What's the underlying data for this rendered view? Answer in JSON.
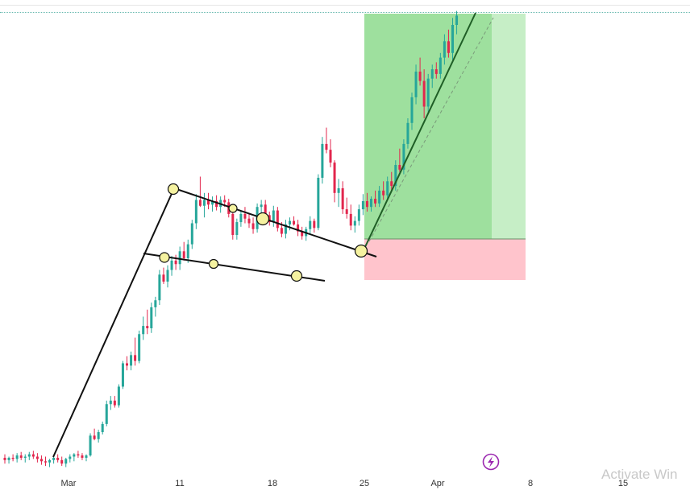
{
  "chart_data": {
    "type": "candlestick",
    "x_tick_labels": [
      "Mar",
      "11",
      "18",
      "25",
      "Apr",
      "8",
      "15"
    ],
    "colors": {
      "up": "#26a69a",
      "down": "#e2264d",
      "profit_zone": "#9ee09e",
      "profit_zone_light": "#c6eec6",
      "loss_zone": "#ffc4cc",
      "marker": "#f5f2a0",
      "trend": "#111111",
      "bolt": "#9b27b0"
    },
    "pattern": "bull flag with long position target",
    "candles": [
      {
        "o": 9,
        "h": 12,
        "l": 4,
        "c": 7
      },
      {
        "o": 7,
        "h": 10,
        "l": 4,
        "c": 9
      },
      {
        "o": 9,
        "h": 12,
        "l": 6,
        "c": 8
      },
      {
        "o": 8,
        "h": 13,
        "l": 5,
        "c": 11
      },
      {
        "o": 11,
        "h": 14,
        "l": 7,
        "c": 9
      },
      {
        "o": 9,
        "h": 12,
        "l": 5,
        "c": 10
      },
      {
        "o": 10,
        "h": 14,
        "l": 7,
        "c": 12
      },
      {
        "o": 12,
        "h": 15,
        "l": 8,
        "c": 10
      },
      {
        "o": 10,
        "h": 13,
        "l": 5,
        "c": 8
      },
      {
        "o": 8,
        "h": 11,
        "l": 3,
        "c": 6
      },
      {
        "o": 6,
        "h": 10,
        "l": 2,
        "c": 5
      },
      {
        "o": 5,
        "h": 8,
        "l": 1,
        "c": 7
      },
      {
        "o": 7,
        "h": 11,
        "l": 4,
        "c": 9
      },
      {
        "o": 9,
        "h": 12,
        "l": 5,
        "c": 7
      },
      {
        "o": 7,
        "h": 10,
        "l": 2,
        "c": 4
      },
      {
        "o": 4,
        "h": 9,
        "l": 1,
        "c": 8
      },
      {
        "o": 8,
        "h": 12,
        "l": 5,
        "c": 10
      },
      {
        "o": 10,
        "h": 13,
        "l": 6,
        "c": 12
      },
      {
        "o": 12,
        "h": 15,
        "l": 9,
        "c": 11
      },
      {
        "o": 11,
        "h": 13,
        "l": 7,
        "c": 9
      },
      {
        "o": 9,
        "h": 12,
        "l": 6,
        "c": 11
      },
      {
        "o": 11,
        "h": 30,
        "l": 10,
        "c": 28
      },
      {
        "o": 28,
        "h": 34,
        "l": 24,
        "c": 25
      },
      {
        "o": 25,
        "h": 33,
        "l": 22,
        "c": 31
      },
      {
        "o": 31,
        "h": 40,
        "l": 29,
        "c": 38
      },
      {
        "o": 38,
        "h": 58,
        "l": 36,
        "c": 55
      },
      {
        "o": 55,
        "h": 62,
        "l": 50,
        "c": 58
      },
      {
        "o": 58,
        "h": 62,
        "l": 52,
        "c": 54
      },
      {
        "o": 54,
        "h": 72,
        "l": 52,
        "c": 70
      },
      {
        "o": 70,
        "h": 92,
        "l": 68,
        "c": 90
      },
      {
        "o": 90,
        "h": 96,
        "l": 84,
        "c": 88
      },
      {
        "o": 88,
        "h": 100,
        "l": 84,
        "c": 97
      },
      {
        "o": 97,
        "h": 112,
        "l": 88,
        "c": 92
      },
      {
        "o": 92,
        "h": 118,
        "l": 90,
        "c": 115
      },
      {
        "o": 115,
        "h": 130,
        "l": 110,
        "c": 122
      },
      {
        "o": 122,
        "h": 136,
        "l": 115,
        "c": 120
      },
      {
        "o": 120,
        "h": 142,
        "l": 116,
        "c": 138
      },
      {
        "o": 138,
        "h": 147,
        "l": 130,
        "c": 144
      },
      {
        "o": 144,
        "h": 170,
        "l": 140,
        "c": 166
      },
      {
        "o": 166,
        "h": 172,
        "l": 158,
        "c": 160
      },
      {
        "o": 160,
        "h": 174,
        "l": 155,
        "c": 170
      },
      {
        "o": 170,
        "h": 182,
        "l": 165,
        "c": 178
      },
      {
        "o": 178,
        "h": 183,
        "l": 170,
        "c": 175
      },
      {
        "o": 175,
        "h": 190,
        "l": 170,
        "c": 186
      },
      {
        "o": 186,
        "h": 194,
        "l": 178,
        "c": 180
      },
      {
        "o": 180,
        "h": 196,
        "l": 176,
        "c": 192
      },
      {
        "o": 192,
        "h": 213,
        "l": 188,
        "c": 210
      },
      {
        "o": 210,
        "h": 235,
        "l": 205,
        "c": 230
      },
      {
        "o": 230,
        "h": 250,
        "l": 224,
        "c": 225
      },
      {
        "o": 225,
        "h": 236,
        "l": 215,
        "c": 230
      },
      {
        "o": 230,
        "h": 236,
        "l": 222,
        "c": 226
      },
      {
        "o": 226,
        "h": 233,
        "l": 220,
        "c": 229
      },
      {
        "o": 229,
        "h": 234,
        "l": 221,
        "c": 224
      },
      {
        "o": 224,
        "h": 233,
        "l": 219,
        "c": 230
      },
      {
        "o": 230,
        "h": 234,
        "l": 224,
        "c": 228
      },
      {
        "o": 228,
        "h": 231,
        "l": 215,
        "c": 218
      },
      {
        "o": 218,
        "h": 222,
        "l": 196,
        "c": 200
      },
      {
        "o": 200,
        "h": 214,
        "l": 196,
        "c": 211
      },
      {
        "o": 211,
        "h": 221,
        "l": 207,
        "c": 218
      },
      {
        "o": 218,
        "h": 224,
        "l": 210,
        "c": 214
      },
      {
        "o": 214,
        "h": 219,
        "l": 206,
        "c": 210
      },
      {
        "o": 210,
        "h": 215,
        "l": 201,
        "c": 205
      },
      {
        "o": 205,
        "h": 227,
        "l": 202,
        "c": 224
      },
      {
        "o": 224,
        "h": 230,
        "l": 218,
        "c": 226
      },
      {
        "o": 226,
        "h": 230,
        "l": 214,
        "c": 217
      },
      {
        "o": 217,
        "h": 220,
        "l": 208,
        "c": 211
      },
      {
        "o": 211,
        "h": 225,
        "l": 207,
        "c": 221
      },
      {
        "o": 221,
        "h": 224,
        "l": 203,
        "c": 206
      },
      {
        "o": 206,
        "h": 211,
        "l": 198,
        "c": 201
      },
      {
        "o": 201,
        "h": 213,
        "l": 197,
        "c": 209
      },
      {
        "o": 209,
        "h": 215,
        "l": 204,
        "c": 212
      },
      {
        "o": 212,
        "h": 216,
        "l": 208,
        "c": 209
      },
      {
        "o": 209,
        "h": 213,
        "l": 199,
        "c": 203
      },
      {
        "o": 203,
        "h": 207,
        "l": 196,
        "c": 199
      },
      {
        "o": 199,
        "h": 207,
        "l": 195,
        "c": 205
      },
      {
        "o": 205,
        "h": 216,
        "l": 200,
        "c": 212
      },
      {
        "o": 212,
        "h": 214,
        "l": 202,
        "c": 206
      },
      {
        "o": 206,
        "h": 252,
        "l": 204,
        "c": 249
      },
      {
        "o": 249,
        "h": 284,
        "l": 244,
        "c": 278
      },
      {
        "o": 278,
        "h": 292,
        "l": 270,
        "c": 273
      },
      {
        "o": 273,
        "h": 282,
        "l": 258,
        "c": 262
      },
      {
        "o": 262,
        "h": 264,
        "l": 228,
        "c": 236
      },
      {
        "o": 236,
        "h": 248,
        "l": 224,
        "c": 240
      },
      {
        "o": 240,
        "h": 246,
        "l": 218,
        "c": 222
      },
      {
        "o": 222,
        "h": 232,
        "l": 214,
        "c": 218
      },
      {
        "o": 218,
        "h": 226,
        "l": 204,
        "c": 208
      },
      {
        "o": 208,
        "h": 216,
        "l": 202,
        "c": 212
      },
      {
        "o": 212,
        "h": 226,
        "l": 208,
        "c": 222
      },
      {
        "o": 222,
        "h": 235,
        "l": 217,
        "c": 229
      },
      {
        "o": 229,
        "h": 236,
        "l": 220,
        "c": 224
      },
      {
        "o": 224,
        "h": 233,
        "l": 220,
        "c": 231
      },
      {
        "o": 231,
        "h": 238,
        "l": 224,
        "c": 227
      },
      {
        "o": 227,
        "h": 242,
        "l": 224,
        "c": 238
      },
      {
        "o": 238,
        "h": 246,
        "l": 230,
        "c": 234
      },
      {
        "o": 234,
        "h": 250,
        "l": 230,
        "c": 246
      },
      {
        "o": 246,
        "h": 254,
        "l": 238,
        "c": 242
      },
      {
        "o": 242,
        "h": 264,
        "l": 238,
        "c": 260
      },
      {
        "o": 260,
        "h": 274,
        "l": 254,
        "c": 256
      },
      {
        "o": 256,
        "h": 282,
        "l": 252,
        "c": 278
      },
      {
        "o": 278,
        "h": 300,
        "l": 274,
        "c": 296
      },
      {
        "o": 296,
        "h": 322,
        "l": 290,
        "c": 318
      },
      {
        "o": 318,
        "h": 346,
        "l": 312,
        "c": 340
      },
      {
        "o": 340,
        "h": 352,
        "l": 328,
        "c": 332
      },
      {
        "o": 332,
        "h": 342,
        "l": 300,
        "c": 310
      },
      {
        "o": 310,
        "h": 338,
        "l": 304,
        "c": 334
      },
      {
        "o": 334,
        "h": 346,
        "l": 326,
        "c": 342
      },
      {
        "o": 342,
        "h": 348,
        "l": 334,
        "c": 338
      },
      {
        "o": 338,
        "h": 356,
        "l": 334,
        "c": 352
      },
      {
        "o": 352,
        "h": 372,
        "l": 346,
        "c": 366
      },
      {
        "o": 366,
        "h": 376,
        "l": 352,
        "c": 356
      },
      {
        "o": 356,
        "h": 386,
        "l": 350,
        "c": 380
      },
      {
        "o": 380,
        "h": 392,
        "l": 372,
        "c": 388
      }
    ]
  },
  "watermark": {
    "text": "Activate Win"
  }
}
